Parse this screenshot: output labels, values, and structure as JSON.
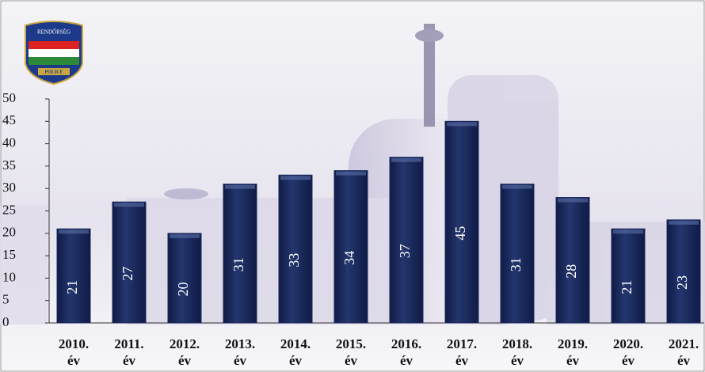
{
  "logo": {
    "top": "RENDŐRSÉG",
    "bottom": "POLICE"
  },
  "chart_data": {
    "type": "bar",
    "categories": [
      "2010. év",
      "2011. év",
      "2012. év",
      "2013. év",
      "2014. év",
      "2015. év",
      "2016. év",
      "2017. év",
      "2018. év",
      "2019. év",
      "2020. év",
      "2021. év"
    ],
    "values": [
      21,
      27,
      20,
      31,
      33,
      34,
      37,
      45,
      31,
      28,
      21,
      23
    ],
    "color": "#1b2a5c",
    "ylim": [
      0,
      50
    ],
    "yticks": [
      0,
      5,
      10,
      15,
      20,
      25,
      30,
      35,
      40,
      45,
      50
    ],
    "grid": false
  }
}
